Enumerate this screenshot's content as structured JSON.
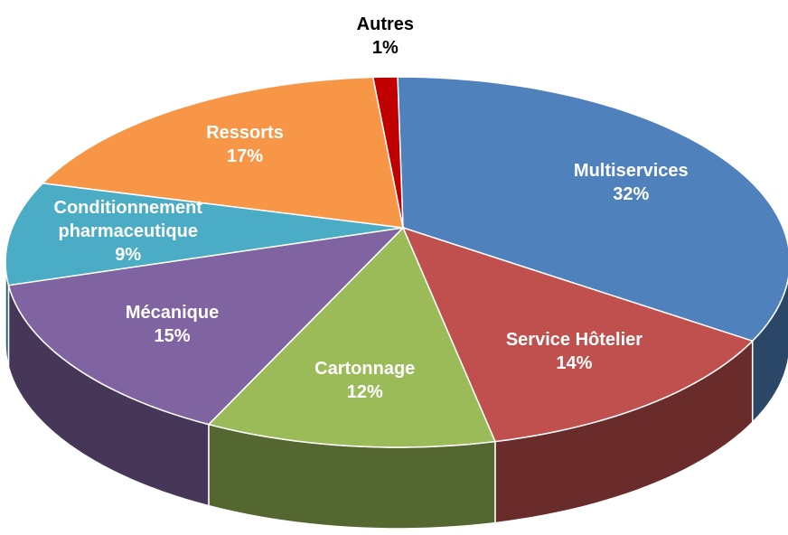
{
  "chart_data": {
    "type": "pie3d",
    "categories": [
      "Multiservices",
      "Service Hôtelier",
      "Cartonnage",
      "Mécanique",
      "Conditionnement pharmaceutique",
      "Ressorts",
      "Autres"
    ],
    "values": [
      32,
      14,
      12,
      15,
      9,
      17,
      1
    ],
    "value_labels": [
      "32%",
      "14%",
      "12%",
      "15%",
      "9%",
      "17%",
      "1%"
    ],
    "colors": [
      "#4f81bd",
      "#c0504d",
      "#9bbb59",
      "#8064a2",
      "#4bacc6",
      "#f79646",
      "#c00000"
    ]
  }
}
